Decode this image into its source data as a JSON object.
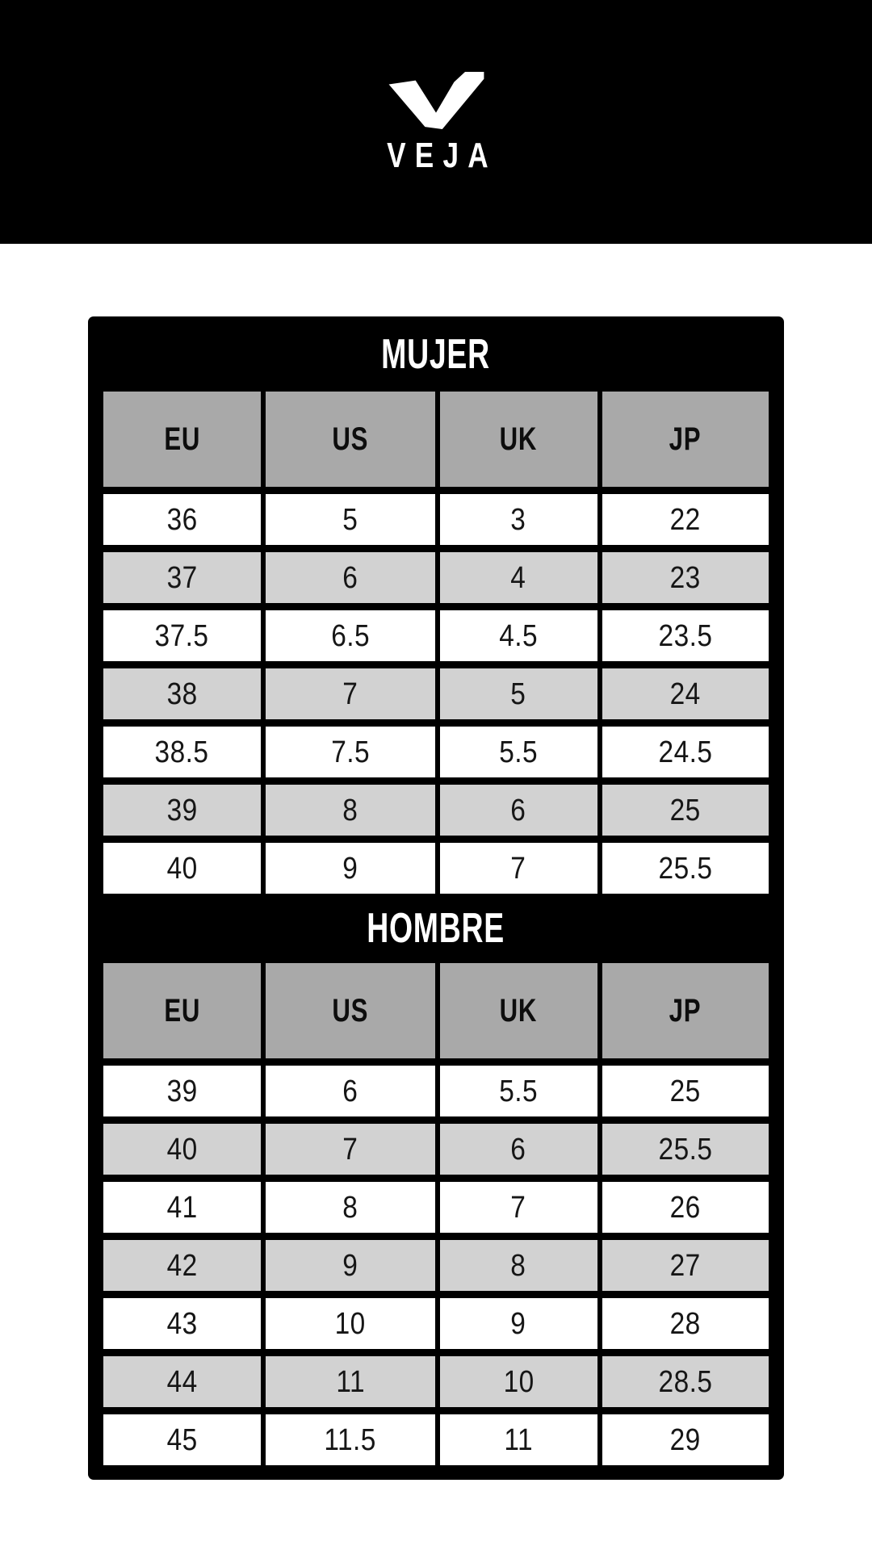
{
  "brand": {
    "name": "VEJA",
    "logo_icon": "veja-v-icon"
  },
  "colors": {
    "page_background": "#ffffff",
    "hero_background": "#000000",
    "card_background": "#000000",
    "header_cell": "#a9a9a9",
    "row_white": "#ffffff",
    "row_alt": "#d2d2d2",
    "title_text": "#ffffff",
    "cell_text": "#161616"
  },
  "chart_data": [
    {
      "type": "table",
      "title": "MUJER",
      "columns": [
        "EU",
        "US",
        "UK",
        "JP"
      ],
      "rows": [
        [
          "36",
          "5",
          "3",
          "22"
        ],
        [
          "37",
          "6",
          "4",
          "23"
        ],
        [
          "37.5",
          "6.5",
          "4.5",
          "23.5"
        ],
        [
          "38",
          "7",
          "5",
          "24"
        ],
        [
          "38.5",
          "7.5",
          "5.5",
          "24.5"
        ],
        [
          "39",
          "8",
          "6",
          "25"
        ],
        [
          "40",
          "9",
          "7",
          "25.5"
        ]
      ]
    },
    {
      "type": "table",
      "title": "HOMBRE",
      "columns": [
        "EU",
        "US",
        "UK",
        "JP"
      ],
      "rows": [
        [
          "39",
          "6",
          "5.5",
          "25"
        ],
        [
          "40",
          "7",
          "6",
          "25.5"
        ],
        [
          "41",
          "8",
          "7",
          "26"
        ],
        [
          "42",
          "9",
          "8",
          "27"
        ],
        [
          "43",
          "10",
          "9",
          "28"
        ],
        [
          "44",
          "11",
          "10",
          "28.5"
        ],
        [
          "45",
          "11.5",
          "11",
          "29"
        ]
      ]
    }
  ]
}
